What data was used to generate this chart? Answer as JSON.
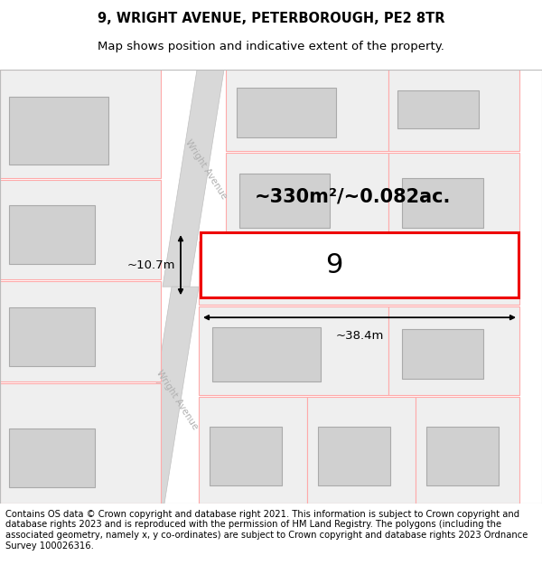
{
  "title": "9, WRIGHT AVENUE, PETERBOROUGH, PE2 8TR",
  "subtitle": "Map shows position and indicative extent of the property.",
  "footer": "Contains OS data © Crown copyright and database right 2021. This information is subject to Crown copyright and database rights 2023 and is reproduced with the permission of HM Land Registry. The polygons (including the associated geometry, namely x, y co-ordinates) are subject to Crown copyright and database rights 2023 Ordnance Survey 100026316.",
  "map_bg": "#f5f5f5",
  "road_color": "#d8d8d8",
  "road_edge": "#c0c0c0",
  "road_label_color": "#b0b0b0",
  "building_fill": "#d0d0d0",
  "building_edge": "#aaaaaa",
  "plot_fill": "#efefef",
  "plot_edge": "#ffaaaa",
  "property_fill": "#ffffff",
  "property_edge": "#ee0000",
  "area_text": "~330m²/~0.082ac.",
  "label_number": "9",
  "dim_width": "~38.4m",
  "dim_height": "~10.7m",
  "title_fontsize": 10.5,
  "subtitle_fontsize": 9.5,
  "footer_fontsize": 7.2
}
